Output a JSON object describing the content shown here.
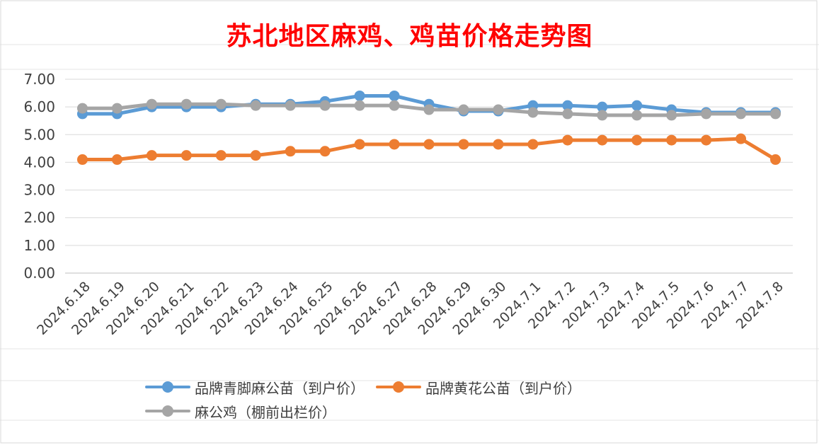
{
  "chart_data": {
    "type": "line",
    "title": "苏北地区麻鸡、鸡苗价格走势图",
    "xlabel": "",
    "ylabel": "",
    "ylim": [
      0,
      7
    ],
    "yticks": [
      "0.00",
      "1.00",
      "2.00",
      "3.00",
      "4.00",
      "5.00",
      "6.00",
      "7.00"
    ],
    "grid": true,
    "legend_position": "bottom",
    "categories": [
      "2024.6.18",
      "2024.6.19",
      "2024.6.20",
      "2024.6.21",
      "2024.6.22",
      "2024.6.23",
      "2024.6.24",
      "2024.6.25",
      "2024.6.26",
      "2024.6.27",
      "2024.6.28",
      "2024.6.29",
      "2024.6.30",
      "2024.7.1",
      "2024.7.2",
      "2024.7.3",
      "2024.7.4",
      "2024.7.5",
      "2024.7.6",
      "2024.7.7",
      "2024.7.8"
    ],
    "series": [
      {
        "name": "品牌青脚麻公苗（到户价）",
        "color": "#5b9bd5",
        "values": [
          5.75,
          5.75,
          6.0,
          6.0,
          6.0,
          6.1,
          6.1,
          6.2,
          6.4,
          6.4,
          6.1,
          5.85,
          5.85,
          6.05,
          6.05,
          6.0,
          6.05,
          5.9,
          5.8,
          5.8,
          5.8
        ]
      },
      {
        "name": "品牌黄花公苗（到户价）",
        "color": "#ed7d31",
        "values": [
          4.1,
          4.1,
          4.25,
          4.25,
          4.25,
          4.25,
          4.4,
          4.4,
          4.65,
          4.65,
          4.65,
          4.65,
          4.65,
          4.65,
          4.8,
          4.8,
          4.8,
          4.8,
          4.8,
          4.85,
          4.1
        ]
      },
      {
        "name": "麻公鸡（棚前出栏价）",
        "color": "#a5a5a5",
        "values": [
          5.95,
          5.95,
          6.1,
          6.1,
          6.1,
          6.05,
          6.05,
          6.05,
          6.05,
          6.05,
          5.9,
          5.9,
          5.9,
          5.8,
          5.75,
          5.7,
          5.7,
          5.7,
          5.75,
          5.75,
          5.75
        ]
      }
    ]
  }
}
